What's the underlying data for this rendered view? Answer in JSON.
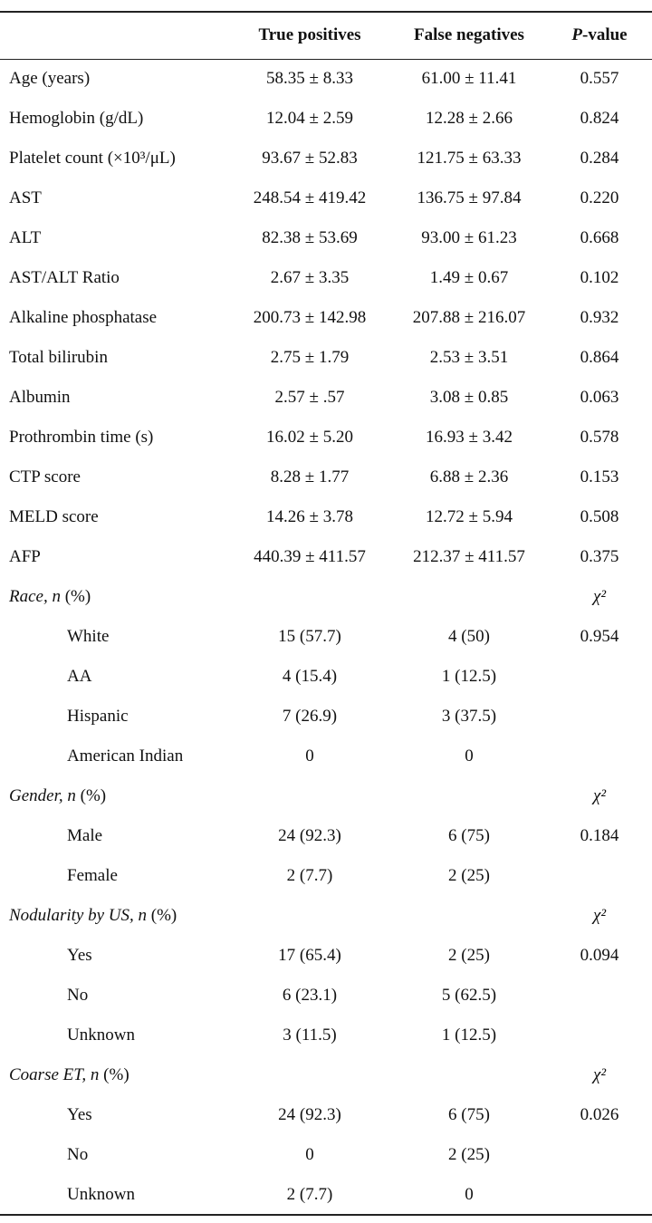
{
  "table": {
    "header": [
      "True positives",
      "False negatives",
      "P-value"
    ],
    "measures": [
      {
        "label": "Age (years)",
        "tp": "58.35 ± 8.33",
        "fn": "61.00 ± 11.41",
        "p": "0.557"
      },
      {
        "label": "Hemoglobin (g/dL)",
        "tp": "12.04 ± 2.59",
        "fn": "12.28 ± 2.66",
        "p": "0.824"
      },
      {
        "label": "Platelet count (×10³/μL)",
        "tp": "93.67 ± 52.83",
        "fn": "121.75 ± 63.33",
        "p": "0.284"
      },
      {
        "label": "AST",
        "tp": "248.54 ± 419.42",
        "fn": "136.75 ± 97.84",
        "p": "0.220"
      },
      {
        "label": "ALT",
        "tp": "82.38 ± 53.69",
        "fn": "93.00 ± 61.23",
        "p": "0.668"
      },
      {
        "label": "AST/ALT Ratio",
        "tp": "2.67 ± 3.35",
        "fn": "1.49 ± 0.67",
        "p": "0.102"
      },
      {
        "label": "Alkaline phosphatase",
        "tp": "200.73 ± 142.98",
        "fn": "207.88 ± 216.07",
        "p": "0.932"
      },
      {
        "label": "Total bilirubin",
        "tp": "2.75 ± 1.79",
        "fn": "2.53 ± 3.51",
        "p": "0.864"
      },
      {
        "label": "Albumin",
        "tp": "2.57 ± .57",
        "fn": "3.08 ± 0.85",
        "p": "0.063"
      },
      {
        "label": "Prothrombin time (s)",
        "tp": "16.02 ± 5.20",
        "fn": "16.93 ± 3.42",
        "p": "0.578"
      },
      {
        "label": "CTP score",
        "tp": "8.28 ± 1.77",
        "fn": "6.88 ± 2.36",
        "p": "0.153"
      },
      {
        "label": "MELD score",
        "tp": "14.26 ± 3.78",
        "fn": "12.72 ± 5.94",
        "p": "0.508"
      },
      {
        "label": "AFP",
        "tp": "440.39 ± 411.57",
        "fn": "212.37 ± 411.57",
        "p": "0.375"
      }
    ],
    "groups": [
      {
        "title": "Race, n",
        "unit": " (%)",
        "test": "χ²",
        "rows": [
          {
            "label": "White",
            "tp": "15 (57.7)",
            "fn": "4 (50)",
            "p": "0.954"
          },
          {
            "label": "AA",
            "tp": "4 (15.4)",
            "fn": "1 (12.5)"
          },
          {
            "label": "Hispanic",
            "tp": "7 (26.9)",
            "fn": "3 (37.5)"
          },
          {
            "label": "American Indian",
            "tp": "0",
            "fn": "0"
          }
        ]
      },
      {
        "title": "Gender, n",
        "unit": " (%)",
        "test": "χ²",
        "rows": [
          {
            "label": "Male",
            "tp": "24 (92.3)",
            "fn": "6 (75)",
            "p": "0.184"
          },
          {
            "label": "Female",
            "tp": "2 (7.7)",
            "fn": "2 (25)"
          }
        ]
      },
      {
        "title": "Nodularity by US, n",
        "unit": " (%)",
        "test": "χ²",
        "rows": [
          {
            "label": "Yes",
            "tp": "17 (65.4)",
            "fn": "2 (25)",
            "p": "0.094"
          },
          {
            "label": "No",
            "tp": "6 (23.1)",
            "fn": "5 (62.5)"
          },
          {
            "label": "Unknown",
            "tp": "3 (11.5)",
            "fn": "1 (12.5)"
          }
        ]
      },
      {
        "title": "Coarse ET, n",
        "unit": " (%)",
        "test": "χ²",
        "rows": [
          {
            "label": "Yes",
            "tp": "24 (92.3)",
            "fn": "6 (75)",
            "p": "0.026"
          },
          {
            "label": "No",
            "tp": "0",
            "fn": "2 (25)"
          },
          {
            "label": "Unknown",
            "tp": "2 (7.7)",
            "fn": "0"
          }
        ]
      }
    ]
  }
}
